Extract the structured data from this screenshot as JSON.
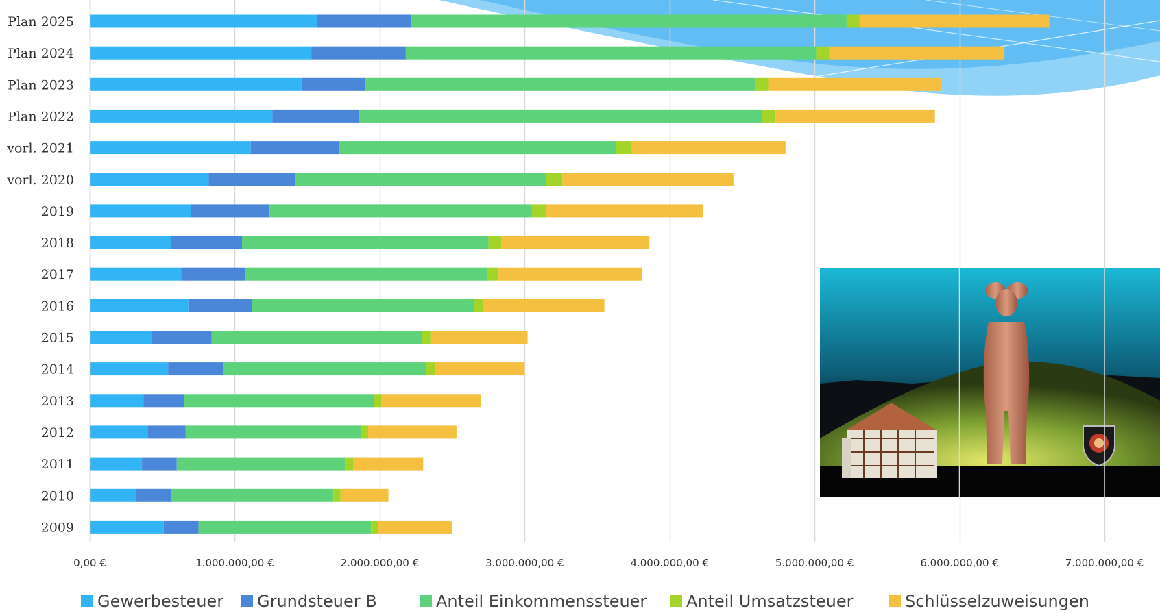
{
  "chart_data": {
    "type": "bar",
    "orientation": "horizontal",
    "stacked": true,
    "categories": [
      "Plan 2025",
      "Plan 2024",
      "Plan 2023",
      "Plan 2022",
      "vorl. 2021",
      "vorl. 2020",
      "2019",
      "2018",
      "2017",
      "2016",
      "2015",
      "2014",
      "2013",
      "2012",
      "2011",
      "2010",
      "2009"
    ],
    "series": [
      {
        "name": "Gewerbesteuer",
        "color": "#33B5F5",
        "values": [
          1570000,
          1530000,
          1460000,
          1260000,
          1110000,
          820000,
          700000,
          560000,
          630000,
          680000,
          430000,
          540000,
          370000,
          400000,
          360000,
          320000,
          510000
        ]
      },
      {
        "name": "Grundsteuer B",
        "color": "#4A87D8",
        "values": [
          650000,
          650000,
          440000,
          600000,
          610000,
          600000,
          540000,
          490000,
          440000,
          440000,
          410000,
          380000,
          280000,
          260000,
          240000,
          240000,
          240000
        ]
      },
      {
        "name": "Anteil Einkommenssteuer",
        "color": "#5DD27A",
        "values": [
          3000000,
          2830000,
          2690000,
          2780000,
          1910000,
          1730000,
          1810000,
          1700000,
          1670000,
          1530000,
          1450000,
          1400000,
          1310000,
          1210000,
          1160000,
          1120000,
          1190000
        ]
      },
      {
        "name": "Anteil Umsatzsteuer",
        "color": "#A3D42A",
        "values": [
          90000,
          90000,
          90000,
          90000,
          110000,
          110000,
          100000,
          90000,
          80000,
          60000,
          60000,
          60000,
          50000,
          50000,
          60000,
          50000,
          50000
        ]
      },
      {
        "name": "Schlüsselzuweisungen",
        "color": "#F5C040",
        "values": [
          1310000,
          1210000,
          1190000,
          1100000,
          1060000,
          1180000,
          1080000,
          1020000,
          990000,
          840000,
          670000,
          620000,
          690000,
          610000,
          480000,
          330000,
          510000
        ]
      }
    ],
    "xlim": [
      0,
      7000000
    ],
    "x_ticks": [
      {
        "value": 0,
        "label": "0,00 €"
      },
      {
        "value": 1000000,
        "label": "1.000.000,00 €"
      },
      {
        "value": 2000000,
        "label": "2.000.000,00 €"
      },
      {
        "value": 3000000,
        "label": "3.000.000,00 €"
      },
      {
        "value": 4000000,
        "label": "4.000.000,00 €"
      },
      {
        "value": 5000000,
        "label": "5.000.000,00 €"
      },
      {
        "value": 6000000,
        "label": "6.000.000,00 €"
      },
      {
        "value": 7000000,
        "label": "7.000.000,00 €"
      }
    ],
    "grid": true,
    "legend_position": "bottom"
  },
  "decorations": {
    "background_swoosh_color": "#6EC6F5",
    "photo_icon": "photo-statue-landscape"
  }
}
